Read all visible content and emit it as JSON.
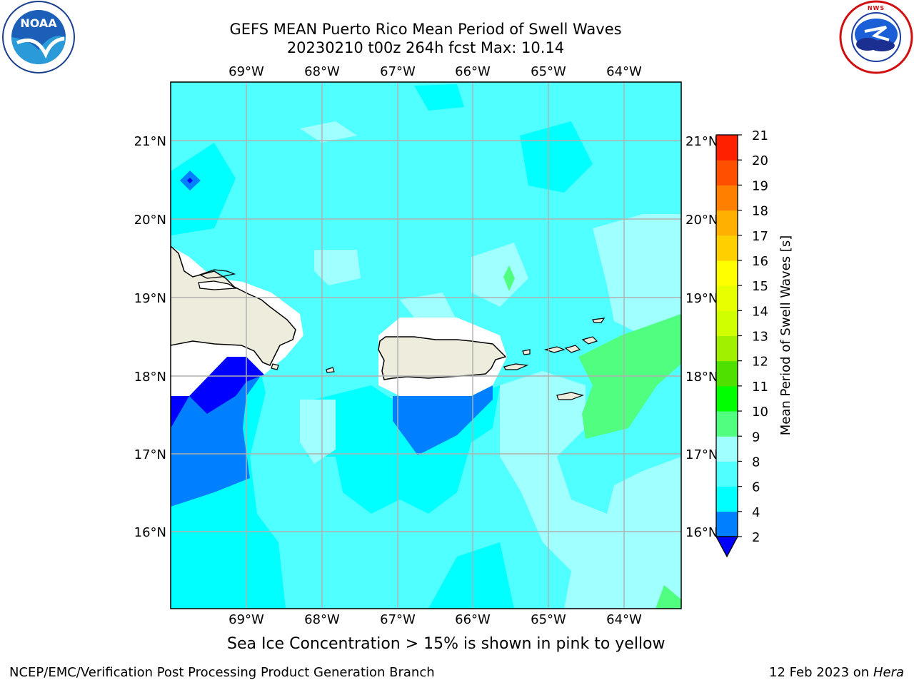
{
  "header": {
    "title_line1": "GEFS MEAN Puerto Rico Mean Period of Swell Waves",
    "title_line2": "20230210 t00z 264h fcst   Max: 10.14"
  },
  "logos": {
    "left": {
      "text": "NOAA",
      "ring_text": "NATIONAL OCEANIC AND ATMOSPHERIC ADMINISTRATION · U.S. DEPARTMENT OF COMMERCE"
    },
    "right": {
      "ring_text": "NATIONAL WEATHER SERVICE"
    }
  },
  "map": {
    "lon_labels": [
      "69°W",
      "68°W",
      "67°W",
      "66°W",
      "65°W",
      "64°W"
    ],
    "lat_labels": [
      "21°N",
      "20°N",
      "19°N",
      "18°N",
      "17°N",
      "16°N"
    ],
    "colors": {
      "ocean_base": "#00ffff",
      "land": "#eeecdc",
      "coast": "#000000",
      "grid": "#b0b0b0"
    }
  },
  "colorbar": {
    "label": "Mean Period of Swell Waves [s]",
    "ticks": [
      "2",
      "4",
      "6",
      "8",
      "9",
      "10",
      "11",
      "12",
      "13",
      "14",
      "15",
      "16",
      "17",
      "18",
      "19",
      "20",
      "21"
    ],
    "colors": [
      "#0080ff",
      "#00ffff",
      "#50ffff",
      "#a0ffff",
      "#50ff80",
      "#00ff00",
      "#50e000",
      "#a0f000",
      "#d0ff00",
      "#e8ff00",
      "#ffff00",
      "#ffd000",
      "#ffb000",
      "#ff8000",
      "#ff5000",
      "#ff2000"
    ],
    "under_color": "#0000ff"
  },
  "subtitle": "Sea Ice Concentration > 15% is shown in pink to yellow",
  "footer": {
    "left": "NCEP/EMC/Verification Post Processing Product Generation Branch",
    "right_date": "12 Feb 2023 on",
    "right_host": "Hera"
  }
}
